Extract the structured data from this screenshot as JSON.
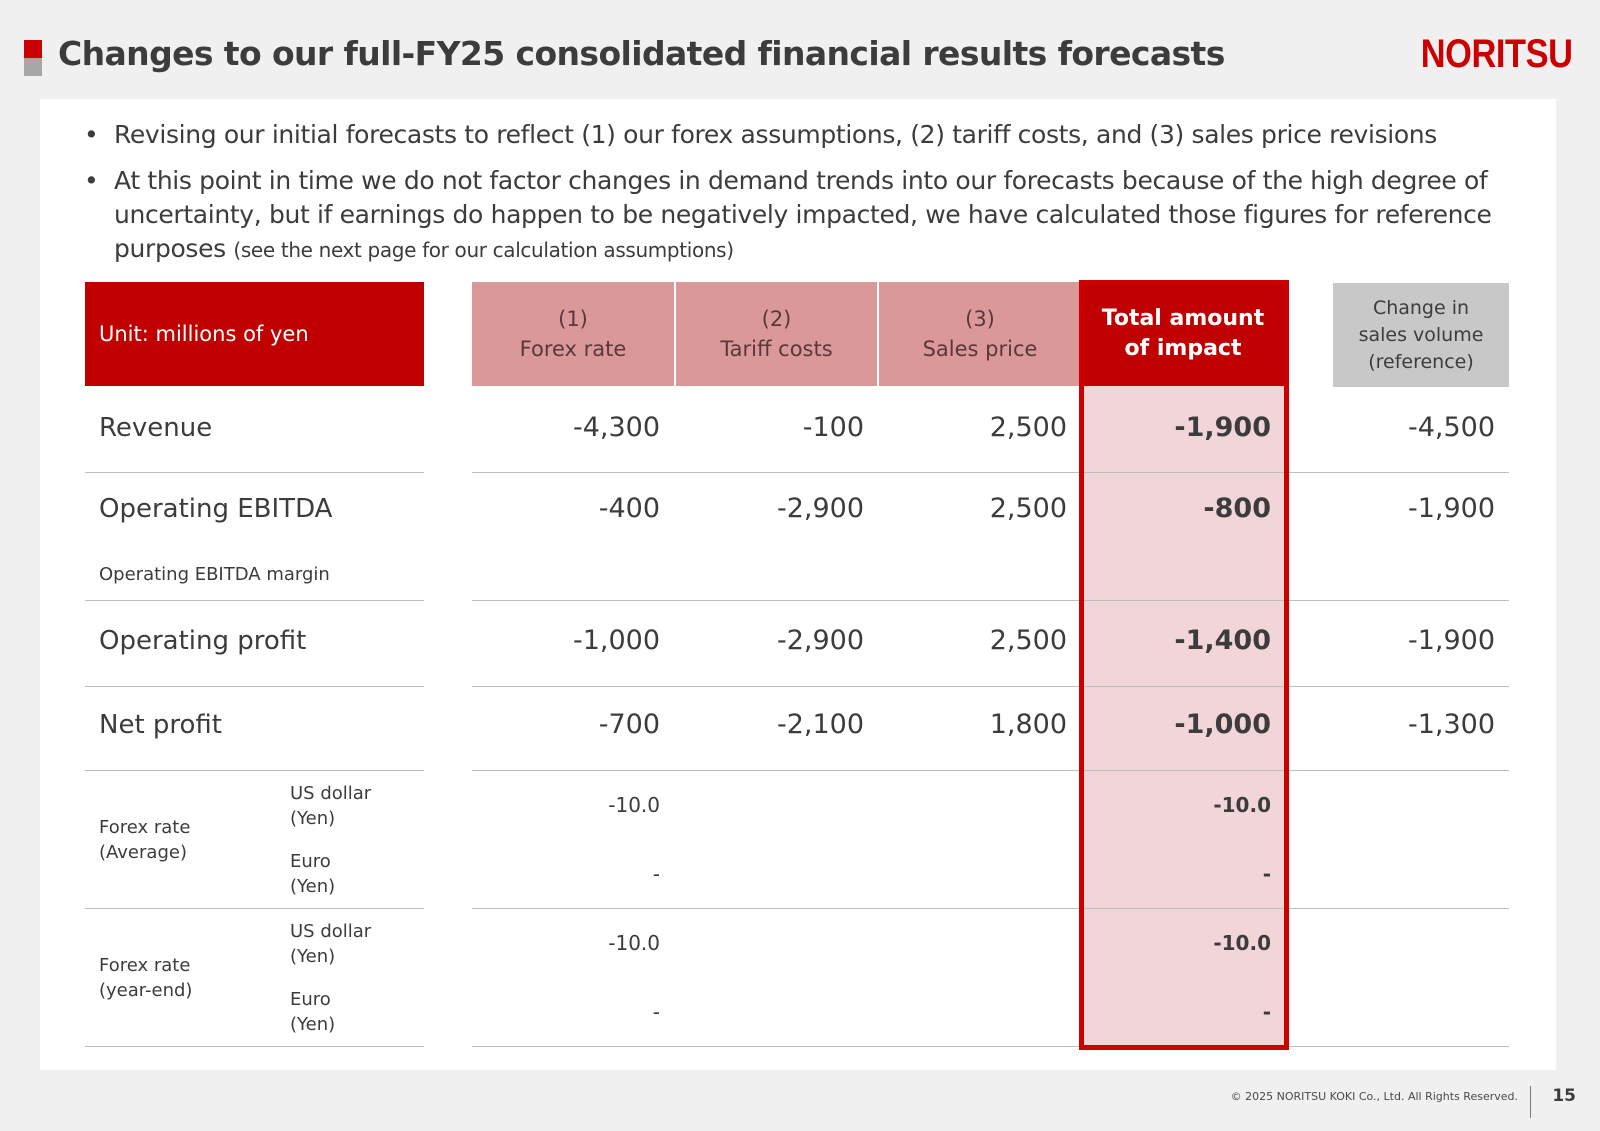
{
  "header": {
    "title": "Changes to our full-FY25 consolidated financial results forecasts",
    "logo": "NORITSU"
  },
  "bullets": [
    {
      "text": "Revising our initial forecasts to reflect (1) our forex assumptions, (2) tariff costs, and (3) sales price revisions"
    },
    {
      "text": "At this point in time we do not factor changes in demand trends into our forecasts because of the high degree of uncertainty, but if earnings do happen to be negatively impacted, we have calculated those figures for reference purposes",
      "note": "(see the next page for our calculation assumptions)"
    }
  ],
  "bullet_glyph": "•",
  "table": {
    "unit_label": "Unit: millions of yen",
    "columns": [
      {
        "num": "(1)",
        "name": "Forex rate"
      },
      {
        "num": "(2)",
        "name": "Tariff costs"
      },
      {
        "num": "(3)",
        "name": "Sales price"
      }
    ],
    "total_header": [
      "Total amount",
      "of impact"
    ],
    "ref_header": [
      "Change in",
      "sales volume",
      "(reference)"
    ],
    "rows": {
      "revenue": {
        "label": "Revenue",
        "forex": "-4,300",
        "tariff": "-100",
        "price": "2,500",
        "total": "-1,900",
        "ref": "-4,500"
      },
      "ebitda": {
        "label": "Operating EBITDA",
        "sublabel": "Operating EBITDA margin",
        "forex": "-400",
        "tariff": "-2,900",
        "price": "2,500",
        "total": "-800",
        "ref": "-1,900"
      },
      "op_profit": {
        "label": "Operating profit",
        "forex": "-1,000",
        "tariff": "-2,900",
        "price": "2,500",
        "total": "-1,400",
        "ref": "-1,900"
      },
      "net_profit": {
        "label": "Net profit",
        "forex": "-700",
        "tariff": "-2,100",
        "price": "1,800",
        "total": "-1,000",
        "ref": "-1,300"
      }
    },
    "fx_average": {
      "label": [
        "Forex rate",
        "(Average)"
      ],
      "usd": {
        "label": [
          "US dollar",
          "(Yen)"
        ],
        "forex": "-10.0",
        "total": "-10.0"
      },
      "eur": {
        "label": [
          "Euro",
          "(Yen)"
        ],
        "forex": "-",
        "total": "-"
      }
    },
    "fx_yearend": {
      "label": [
        "Forex rate",
        "(year-end)"
      ],
      "usd": {
        "label": [
          "US dollar",
          "(Yen)"
        ],
        "forex": "-10.0",
        "total": "-10.0"
      },
      "eur": {
        "label": [
          "Euro",
          "(Yen)"
        ],
        "forex": "-",
        "total": "-"
      }
    }
  },
  "footer": {
    "copyright": "© 2025 NORITSU KOKI Co., Ltd. All Rights Reserved.",
    "page": "15"
  }
}
